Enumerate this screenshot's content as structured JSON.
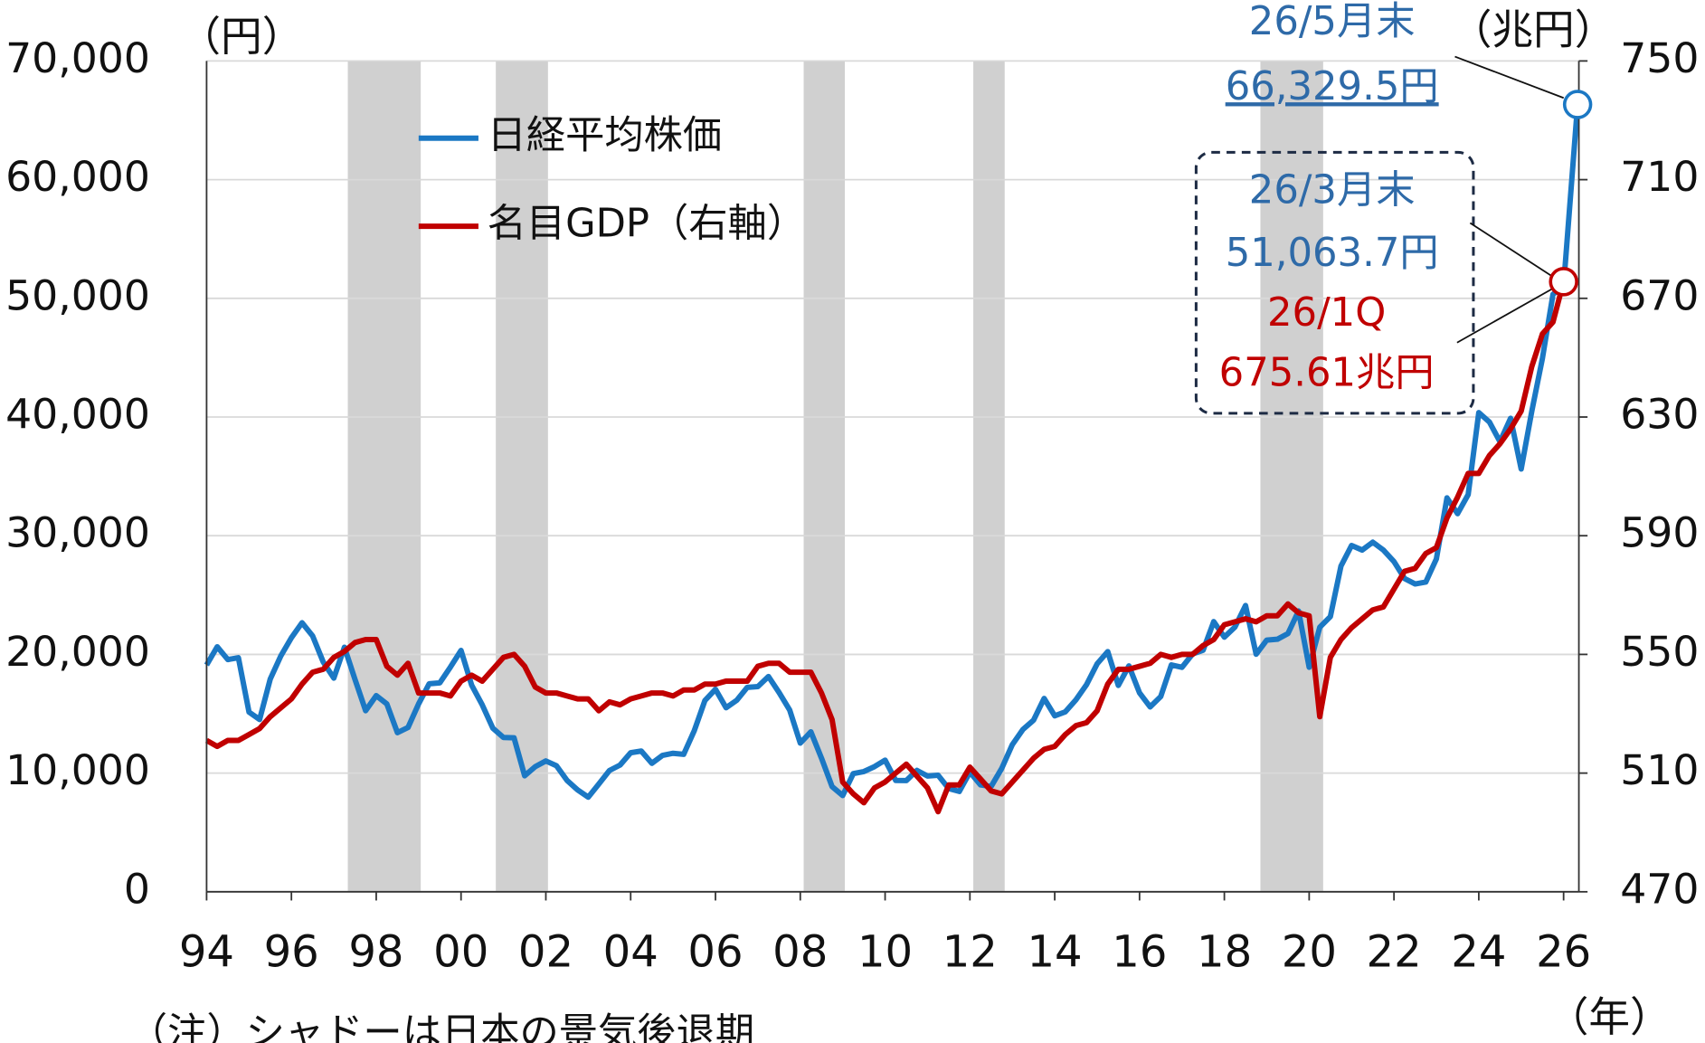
{
  "chart_data": {
    "type": "line",
    "y_label": "（円）",
    "y2_label": "（兆円）",
    "x_label": "（年）",
    "note": "（注）シャドーは日本の景気後退期",
    "legend": "upper-left",
    "grid": true,
    "x": [
      1994,
      1994.25,
      1994.5,
      1994.75,
      1995,
      1995.25,
      1995.5,
      1995.75,
      1996,
      1996.25,
      1996.5,
      1996.75,
      1997,
      1997.25,
      1997.5,
      1997.75,
      1998,
      1998.25,
      1998.5,
      1998.75,
      1999,
      1999.25,
      1999.5,
      1999.75,
      2000,
      2000.25,
      2000.5,
      2000.75,
      2001,
      2001.25,
      2001.5,
      2001.75,
      2002,
      2002.25,
      2002.5,
      2002.75,
      2003,
      2003.25,
      2003.5,
      2003.75,
      2004,
      2004.25,
      2004.5,
      2004.75,
      2005,
      2005.25,
      2005.5,
      2005.75,
      2006,
      2006.25,
      2006.5,
      2006.75,
      2007,
      2007.25,
      2007.5,
      2007.75,
      2008,
      2008.25,
      2008.5,
      2008.75,
      2009,
      2009.25,
      2009.5,
      2009.75,
      2010,
      2010.25,
      2010.5,
      2010.75,
      2011,
      2011.25,
      2011.5,
      2011.75,
      2012,
      2012.25,
      2012.5,
      2012.75,
      2013,
      2013.25,
      2013.5,
      2013.75,
      2014,
      2014.25,
      2014.5,
      2014.75,
      2015,
      2015.25,
      2015.5,
      2015.75,
      2016,
      2016.25,
      2016.5,
      2016.75,
      2017,
      2017.25,
      2017.5,
      2017.75,
      2018,
      2018.25,
      2018.5,
      2018.75,
      2019,
      2019.25,
      2019.5,
      2019.75,
      2020,
      2020.25,
      2020.5,
      2020.75,
      2021,
      2021.25,
      2021.5,
      2021.75,
      2022,
      2022.25,
      2022.5,
      2022.75,
      2023,
      2023.25,
      2023.5,
      2023.75,
      2024,
      2024.25,
      2024.5,
      2024.75,
      2025,
      2025.25,
      2025.5,
      2025.75,
      2026,
      2026.33
    ],
    "series": [
      {
        "name": "日経平均株価",
        "color": "#1b78c4",
        "axis": "y",
        "values": [
          19111,
          20644,
          19564,
          19723,
          15140,
          14517,
          17913,
          19868,
          21407,
          22666,
          21556,
          19361,
          18003,
          20605,
          17888,
          15259,
          16527,
          15830,
          13406,
          13842,
          15837,
          17530,
          17605,
          18934,
          20337,
          17411,
          15747,
          13786,
          12999,
          12969,
          9775,
          10543,
          11025,
          10622,
          9383,
          8579,
          7973,
          9083,
          10219,
          10677,
          11715,
          11858,
          10824,
          11489,
          11669,
          11584,
          13574,
          16111,
          17060,
          15505,
          16128,
          17226,
          17288,
          18138,
          16786,
          15308,
          12526,
          13481,
          11260,
          8860,
          8110,
          9958,
          10133,
          10546,
          11090,
          9383,
          9369,
          10229,
          9755,
          9816,
          8700,
          8455,
          10084,
          9007,
          8870,
          10395,
          12398,
          13677,
          14456,
          16291,
          14828,
          15162,
          16174,
          17451,
          19207,
          20236,
          17388,
          19034,
          16759,
          15576,
          16450,
          19114,
          18909,
          20033,
          20356,
          22765,
          21454,
          22305,
          24120,
          20015,
          21206,
          21276,
          21756,
          23657,
          18917,
          22288,
          23185,
          27444,
          29179,
          28792,
          29453,
          28792,
          27821,
          26393,
          25937,
          26095,
          28041,
          33189,
          31858,
          33464,
          40369,
          39583,
          37920,
          39895,
          35618,
          40487,
          44933,
          50339,
          51063.7,
          66329.5
        ]
      },
      {
        "name": "名目GDP（右軸）",
        "color": "#c00000",
        "axis": "y2",
        "values": [
          521,
          519,
          521,
          521,
          523,
          525,
          529,
          532,
          535,
          540,
          544,
          545,
          549,
          551,
          554,
          555,
          555,
          546,
          543,
          547,
          537,
          537,
          537,
          536,
          541,
          543,
          541,
          545,
          549,
          550,
          546,
          539,
          537,
          537,
          536,
          535,
          535,
          531,
          534,
          533,
          535,
          536,
          537,
          537,
          536,
          538,
          538,
          540,
          540,
          541,
          541,
          541,
          546,
          547,
          547,
          544,
          544,
          544,
          537,
          528,
          507,
          503,
          500,
          505,
          507,
          510,
          513,
          509,
          505,
          497,
          506,
          506,
          512,
          508,
          504,
          503,
          507,
          511,
          515,
          518,
          519,
          523,
          526,
          527,
          531,
          540,
          545,
          545,
          546,
          547,
          550,
          549,
          550,
          550,
          553,
          555,
          560,
          561,
          562,
          561,
          563,
          563,
          567,
          564,
          563,
          529,
          549,
          555,
          559,
          562,
          565,
          566,
          572,
          578,
          579,
          584,
          586,
          596,
          603,
          611,
          611,
          617,
          621,
          626,
          632,
          647,
          658,
          662,
          675.61,
          null
        ]
      }
    ],
    "shading": [
      [
        1997.33,
        1999.05
      ],
      [
        2000.82,
        2002.05
      ],
      [
        2008.08,
        2009.05
      ],
      [
        2012.08,
        2012.82
      ],
      [
        2018.85,
        2020.33
      ]
    ],
    "xlim": [
      1994,
      2026.36
    ],
    "xticks": [
      {
        "value": 1994,
        "label": "94"
      },
      {
        "value": 1996,
        "label": "96"
      },
      {
        "value": 1998,
        "label": "98"
      },
      {
        "value": 2000,
        "label": "00"
      },
      {
        "value": 2002,
        "label": "02"
      },
      {
        "value": 2004,
        "label": "04"
      },
      {
        "value": 2006,
        "label": "06"
      },
      {
        "value": 2008,
        "label": "08"
      },
      {
        "value": 2010,
        "label": "10"
      },
      {
        "value": 2012,
        "label": "12"
      },
      {
        "value": 2014,
        "label": "14"
      },
      {
        "value": 2016,
        "label": "16"
      },
      {
        "value": 2018,
        "label": "18"
      },
      {
        "value": 2020,
        "label": "20"
      },
      {
        "value": 2022,
        "label": "22"
      },
      {
        "value": 2024,
        "label": "24"
      },
      {
        "value": 2026,
        "label": "26"
      }
    ],
    "ylim": [
      0,
      70000
    ],
    "yticks": [
      0,
      {
        "value": 10000,
        "label": "10,000"
      },
      {
        "value": 20000,
        "label": "20,000"
      },
      {
        "value": 30000,
        "label": "30,000"
      },
      {
        "value": 40000,
        "label": "40,000"
      },
      {
        "value": 50000,
        "label": "50,000"
      },
      {
        "value": 60000,
        "label": "60,000"
      },
      {
        "value": 70000,
        "label": "70,000"
      }
    ],
    "y2lim": [
      470,
      750
    ],
    "y2ticks": [
      470,
      510,
      550,
      590,
      630,
      670,
      710,
      750
    ],
    "annotations": [
      {
        "text": "26/5月末",
        "color": "#2e6aa8"
      },
      {
        "text": "66,329.5円",
        "color": "#2e6aa8"
      },
      {
        "text": "26/3月末",
        "color": "#2e6aa8"
      },
      {
        "text": "51,063.7円",
        "color": "#2e6aa8"
      },
      {
        "text": "26/1Q",
        "color": "#c00000"
      },
      {
        "text": "675.61兆円",
        "color": "#c00000"
      }
    ]
  }
}
